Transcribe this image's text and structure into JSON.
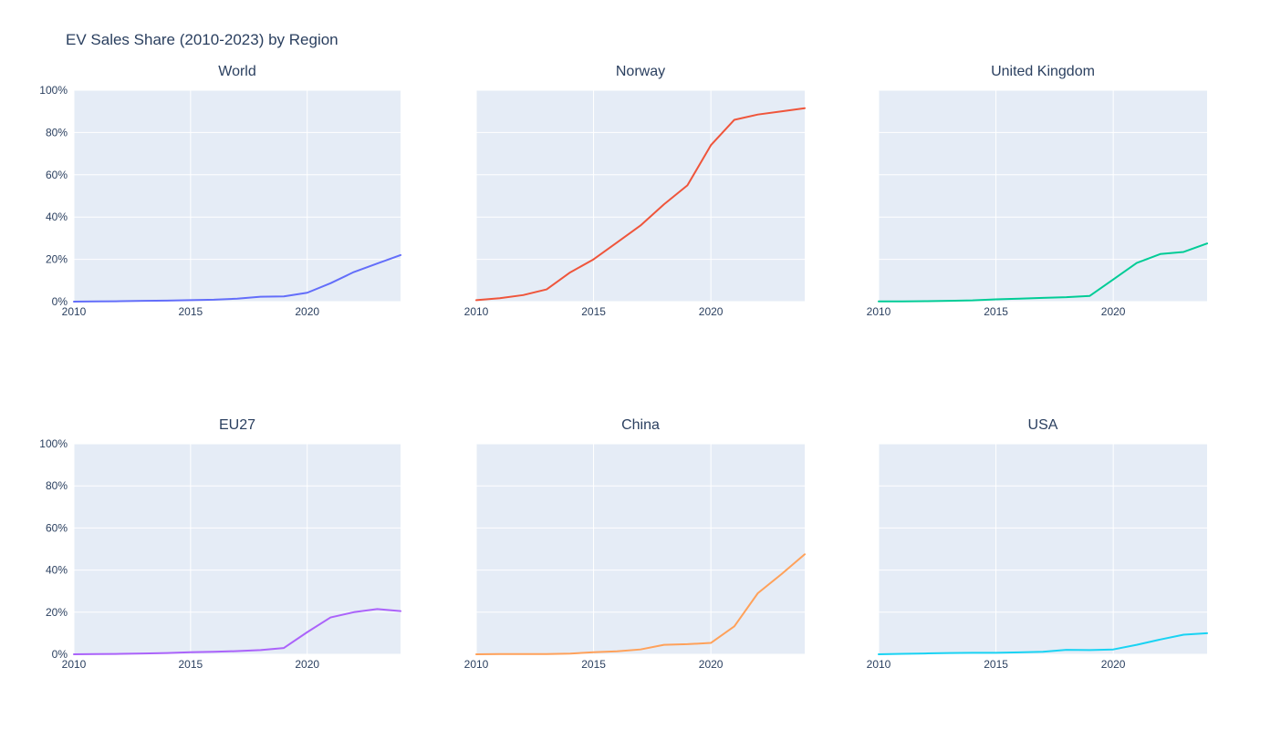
{
  "figure": {
    "title": "EV Sales Share (2010-2023) by Region"
  },
  "style": {
    "paper_bg": "#FFFFFF",
    "plot_bg": "#E5ECF6",
    "grid_color": "#FFFFFF",
    "text_color": "#2a3f5f"
  },
  "chart_data": [
    {
      "type": "line",
      "title": "World",
      "color": "#636EFA",
      "x": [
        2010,
        2011,
        2012,
        2013,
        2014,
        2015,
        2016,
        2017,
        2018,
        2019,
        2020,
        2021,
        2022,
        2023,
        2024
      ],
      "y": [
        0.0,
        0.1,
        0.2,
        0.4,
        0.5,
        0.7,
        0.9,
        1.4,
        2.3,
        2.5,
        4.2,
        8.7,
        14.0,
        18.0,
        22.0
      ],
      "xlim": [
        2010,
        2024
      ],
      "ylim": [
        0,
        100
      ],
      "xticks": [
        2010,
        2015,
        2020
      ],
      "yticks": [
        0,
        20,
        40,
        60,
        80,
        100
      ],
      "ytick_suffix": "%",
      "show_ytick_labels": true,
      "grid": true
    },
    {
      "type": "line",
      "title": "Norway",
      "color": "#EF553B",
      "x": [
        2010,
        2011,
        2012,
        2013,
        2014,
        2015,
        2016,
        2017,
        2018,
        2019,
        2020,
        2021,
        2022,
        2023,
        2024
      ],
      "y": [
        0.7,
        1.6,
        3.1,
        5.8,
        13.8,
        20.0,
        28.0,
        36.0,
        46.0,
        55.0,
        74.0,
        86.0,
        88.5,
        90.0,
        91.5
      ],
      "xlim": [
        2010,
        2024
      ],
      "ylim": [
        0,
        100
      ],
      "xticks": [
        2010,
        2015,
        2020
      ],
      "yticks": [
        0,
        20,
        40,
        60,
        80,
        100
      ],
      "ytick_suffix": "%",
      "show_ytick_labels": false,
      "grid": true
    },
    {
      "type": "line",
      "title": "United Kingdom",
      "color": "#00CC96",
      "x": [
        2010,
        2011,
        2012,
        2013,
        2014,
        2015,
        2016,
        2017,
        2018,
        2019,
        2020,
        2021,
        2022,
        2023,
        2024
      ],
      "y": [
        0.1,
        0.1,
        0.2,
        0.4,
        0.6,
        1.1,
        1.4,
        1.8,
        2.1,
        2.7,
        10.5,
        18.3,
        22.5,
        23.5,
        27.5
      ],
      "xlim": [
        2010,
        2024
      ],
      "ylim": [
        0,
        100
      ],
      "xticks": [
        2010,
        2015,
        2020
      ],
      "yticks": [
        0,
        20,
        40,
        60,
        80,
        100
      ],
      "ytick_suffix": "%",
      "show_ytick_labels": false,
      "grid": true
    },
    {
      "type": "line",
      "title": "EU27",
      "color": "#AB63FA",
      "x": [
        2010,
        2011,
        2012,
        2013,
        2014,
        2015,
        2016,
        2017,
        2018,
        2019,
        2020,
        2021,
        2022,
        2023,
        2024
      ],
      "y": [
        0.0,
        0.1,
        0.2,
        0.4,
        0.6,
        1.0,
        1.2,
        1.5,
        2.0,
        3.0,
        10.5,
        17.5,
        20.0,
        21.5,
        20.5
      ],
      "xlim": [
        2010,
        2024
      ],
      "ylim": [
        0,
        100
      ],
      "xticks": [
        2010,
        2015,
        2020
      ],
      "yticks": [
        0,
        20,
        40,
        60,
        80,
        100
      ],
      "ytick_suffix": "%",
      "show_ytick_labels": true,
      "grid": true
    },
    {
      "type": "line",
      "title": "China",
      "color": "#FFA15A",
      "x": [
        2010,
        2011,
        2012,
        2013,
        2014,
        2015,
        2016,
        2017,
        2018,
        2019,
        2020,
        2021,
        2022,
        2023,
        2024
      ],
      "y": [
        0.0,
        0.1,
        0.1,
        0.1,
        0.3,
        1.0,
        1.4,
        2.3,
        4.5,
        4.8,
        5.4,
        13.3,
        29.0,
        38.0,
        47.5
      ],
      "xlim": [
        2010,
        2024
      ],
      "ylim": [
        0,
        100
      ],
      "xticks": [
        2010,
        2015,
        2020
      ],
      "yticks": [
        0,
        20,
        40,
        60,
        80,
        100
      ],
      "ytick_suffix": "%",
      "show_ytick_labels": false,
      "grid": true
    },
    {
      "type": "line",
      "title": "USA",
      "color": "#19D3F3",
      "x": [
        2010,
        2011,
        2012,
        2013,
        2014,
        2015,
        2016,
        2017,
        2018,
        2019,
        2020,
        2021,
        2022,
        2023,
        2024
      ],
      "y": [
        0.0,
        0.2,
        0.4,
        0.6,
        0.7,
        0.7,
        0.9,
        1.2,
        2.1,
        2.0,
        2.3,
        4.5,
        7.0,
        9.3,
        10.0
      ],
      "xlim": [
        2010,
        2024
      ],
      "ylim": [
        0,
        100
      ],
      "xticks": [
        2010,
        2015,
        2020
      ],
      "yticks": [
        0,
        20,
        40,
        60,
        80,
        100
      ],
      "ytick_suffix": "%",
      "show_ytick_labels": false,
      "grid": true
    }
  ]
}
